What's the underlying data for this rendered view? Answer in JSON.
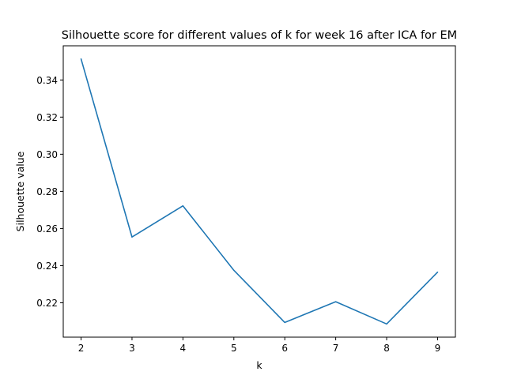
{
  "chart_data": {
    "type": "line",
    "title": "Silhouette score for different values of k for week 16 after ICA for EM",
    "xlabel": "k",
    "ylabel": "Silhouette value",
    "x": [
      2,
      3,
      4,
      5,
      6,
      7,
      8,
      9
    ],
    "series": [
      {
        "values": [
          0.3513,
          0.2554,
          0.2722,
          0.2375,
          0.2094,
          0.2206,
          0.2086,
          0.2365
        ],
        "color": "#1f77b4"
      }
    ],
    "xticks": [
      "2",
      "3",
      "4",
      "5",
      "6",
      "7",
      "8",
      "9"
    ],
    "xtick_values": [
      2,
      3,
      4,
      5,
      6,
      7,
      8,
      9
    ],
    "yticks": [
      "0.22",
      "0.24",
      "0.26",
      "0.28",
      "0.30",
      "0.32",
      "0.34"
    ],
    "ytick_values": [
      0.22,
      0.24,
      0.26,
      0.28,
      0.3,
      0.32,
      0.34
    ],
    "xlim": [
      1.65,
      9.35
    ],
    "ylim": [
      0.2015,
      0.3584
    ],
    "grid": false,
    "legend": "none"
  }
}
